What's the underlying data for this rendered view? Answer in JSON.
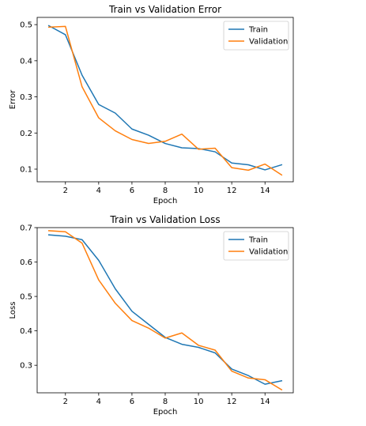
{
  "chart_data": [
    {
      "type": "line",
      "title": "Train vs Validation Error",
      "xlabel": "Epoch",
      "ylabel": "Error",
      "xlim": [
        0.3,
        15.7
      ],
      "ylim": [
        0.065,
        0.52
      ],
      "x_ticks": [
        2,
        4,
        6,
        8,
        10,
        12,
        14
      ],
      "y_ticks": [
        0.1,
        0.2,
        0.3,
        0.4,
        0.5
      ],
      "grid": false,
      "legend_position": "top-right",
      "x": [
        1,
        2,
        3,
        4,
        5,
        6,
        7,
        8,
        9,
        10,
        11,
        12,
        13,
        14,
        15
      ],
      "series": [
        {
          "name": "Train",
          "color": "#1f77b4",
          "values": [
            0.497,
            0.472,
            0.36,
            0.279,
            0.255,
            0.211,
            0.194,
            0.171,
            0.159,
            0.157,
            0.148,
            0.117,
            0.112,
            0.098,
            0.112
          ]
        },
        {
          "name": "Validation",
          "color": "#ff7f0e",
          "values": [
            0.493,
            0.495,
            0.328,
            0.242,
            0.206,
            0.182,
            0.171,
            0.177,
            0.197,
            0.155,
            0.158,
            0.104,
            0.097,
            0.114,
            0.084
          ]
        }
      ]
    },
    {
      "type": "line",
      "title": "Train vs Validation Loss",
      "xlabel": "Epoch",
      "ylabel": "Loss",
      "xlim": [
        0.3,
        15.7
      ],
      "ylim": [
        0.22,
        0.7
      ],
      "x_ticks": [
        2,
        4,
        6,
        8,
        10,
        12,
        14
      ],
      "y_ticks": [
        0.3,
        0.4,
        0.5,
        0.6,
        0.7
      ],
      "grid": false,
      "legend_position": "top-right",
      "x": [
        1,
        2,
        3,
        4,
        5,
        6,
        7,
        8,
        9,
        10,
        11,
        12,
        13,
        14,
        15
      ],
      "series": [
        {
          "name": "Train",
          "color": "#1f77b4",
          "values": [
            0.679,
            0.675,
            0.665,
            0.605,
            0.522,
            0.457,
            0.419,
            0.381,
            0.361,
            0.352,
            0.336,
            0.289,
            0.27,
            0.245,
            0.255
          ]
        },
        {
          "name": "Validation",
          "color": "#ff7f0e",
          "values": [
            0.691,
            0.688,
            0.655,
            0.548,
            0.48,
            0.43,
            0.408,
            0.379,
            0.394,
            0.358,
            0.344,
            0.283,
            0.263,
            0.258,
            0.229
          ]
        }
      ]
    }
  ]
}
